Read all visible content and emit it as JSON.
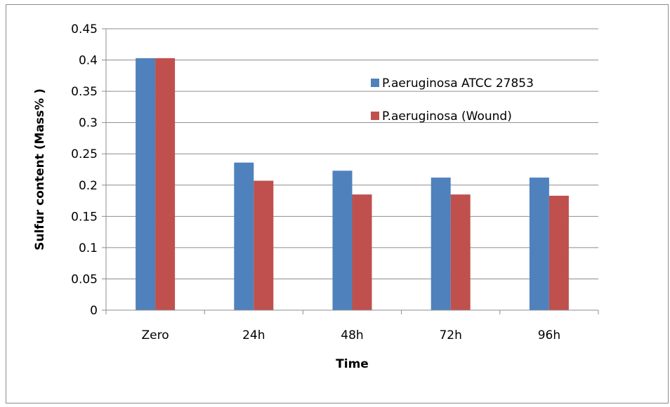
{
  "chart_data": {
    "type": "bar",
    "categories": [
      "Zero",
      "24h",
      "48h",
      "72h",
      "96h"
    ],
    "series": [
      {
        "name": "P.aeruginosa ATCC 27853",
        "color": "#4f81bd",
        "values": [
          0.403,
          0.236,
          0.223,
          0.212,
          0.212
        ]
      },
      {
        "name": "P.aeruginosa (Wound)",
        "color": "#c0504d",
        "values": [
          0.403,
          0.207,
          0.185,
          0.185,
          0.183
        ]
      }
    ],
    "xlabel": "Time",
    "ylabel": "Sulfur content (Mass%  )",
    "ylim": [
      0,
      0.45
    ],
    "yticks": [
      "0",
      "0.05",
      "0.1",
      "0.15",
      "0.2",
      "0.25",
      "0.3",
      "0.35",
      "0.4",
      "0.45"
    ],
    "grid": true,
    "legend_position": "right"
  }
}
